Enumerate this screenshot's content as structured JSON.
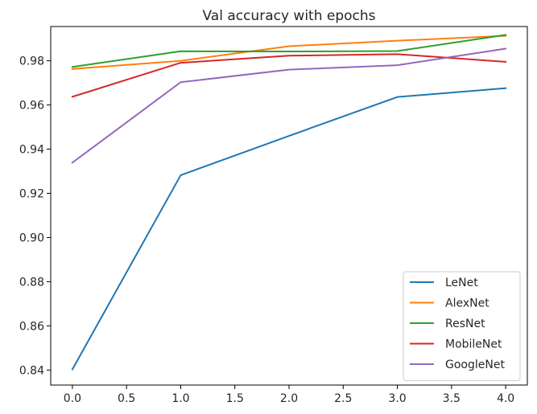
{
  "chart_data": {
    "type": "line",
    "title": "Val accuracy with epochs",
    "xlabel": "",
    "ylabel": "",
    "x": [
      0,
      1,
      2,
      3,
      4
    ],
    "xlim": [
      -0.2,
      4.2
    ],
    "ylim": [
      0.8332,
      0.9955
    ],
    "xticks": [
      0.0,
      0.5,
      1.0,
      1.5,
      2.0,
      2.5,
      3.0,
      3.5,
      4.0
    ],
    "xtick_labels": [
      "0.0",
      "0.5",
      "1.0",
      "1.5",
      "2.0",
      "2.5",
      "3.0",
      "3.5",
      "4.0"
    ],
    "yticks": [
      0.84,
      0.86,
      0.88,
      0.9,
      0.92,
      0.94,
      0.96,
      0.98
    ],
    "ytick_labels": [
      "0.84",
      "0.86",
      "0.88",
      "0.90",
      "0.92",
      "0.94",
      "0.96",
      "0.98"
    ],
    "grid": false,
    "legend_position": "bottom-right",
    "series": [
      {
        "name": "LeNet",
        "color": "#1f77b4",
        "values": [
          0.8403,
          0.9282,
          0.946,
          0.9636,
          0.9676
        ]
      },
      {
        "name": "AlexNet",
        "color": "#ff7f0e",
        "values": [
          0.9763,
          0.98,
          0.9866,
          0.9891,
          0.9913
        ]
      },
      {
        "name": "ResNet",
        "color": "#2ca02c",
        "values": [
          0.9772,
          0.9843,
          0.9842,
          0.9844,
          0.9917
        ]
      },
      {
        "name": "MobileNet",
        "color": "#d62728",
        "values": [
          0.9637,
          0.9791,
          0.9823,
          0.983,
          0.9795
        ]
      },
      {
        "name": "GoogleNet",
        "color": "#9467bd",
        "values": [
          0.9339,
          0.9703,
          0.976,
          0.978,
          0.9855
        ]
      }
    ]
  }
}
